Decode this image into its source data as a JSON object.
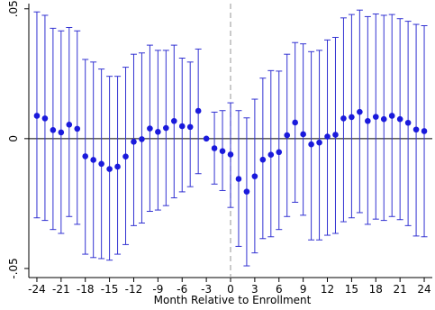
{
  "chart_data": {
    "type": "scatter",
    "title": "",
    "xlabel": "Month Relative to Enrollment",
    "ylabel": "",
    "xlim": [
      -25,
      25
    ],
    "ylim": [
      -0.0535,
      0.052
    ],
    "xticks": [
      -24,
      -21,
      -18,
      -15,
      -12,
      -9,
      -6,
      -3,
      0,
      3,
      6,
      9,
      12,
      15,
      18,
      21,
      24
    ],
    "xtick_labels": [
      "-24",
      "-21",
      "-18",
      "-15",
      "-12",
      "-9",
      "-6",
      "-3",
      "0",
      "3",
      "6",
      "9",
      "12",
      "15",
      "18",
      "21",
      "24"
    ],
    "yticks": [
      -0.05,
      0,
      0.05
    ],
    "ytick_labels": [
      "-.05",
      "0",
      ".05"
    ],
    "reference_lines": {
      "horizontal": 0,
      "vertical": 0
    },
    "grid": false,
    "legend": "none",
    "colors": {
      "points": "#1a1adc",
      "intervals": "#3232d2",
      "zero_line": "#000000",
      "vertical_line": "#a8a8a8"
    },
    "series": [
      {
        "x": [
          -24,
          -23,
          -22,
          -21,
          -20,
          -19,
          -18,
          -17,
          -16,
          -15,
          -14,
          -13,
          -12,
          -11,
          -10,
          -9,
          -8,
          -7,
          -6,
          -5,
          -4,
          -3,
          -2,
          -1,
          0,
          1,
          2,
          3,
          4,
          5,
          6,
          7,
          8,
          9,
          10,
          11,
          12,
          13,
          14,
          15,
          16,
          17,
          18,
          19,
          20,
          21,
          22,
          23,
          24
        ],
        "y": [
          0.0088,
          0.0078,
          0.0033,
          0.0024,
          0.0054,
          0.0038,
          -0.0068,
          -0.0082,
          -0.0097,
          -0.0117,
          -0.0108,
          -0.0069,
          -0.0012,
          -0.0002,
          0.0039,
          0.0026,
          0.0041,
          0.0068,
          0.0048,
          0.0045,
          0.0107,
          0.0,
          -0.0037,
          -0.0048,
          -0.0061,
          -0.0155,
          -0.0204,
          -0.0145,
          -0.0081,
          -0.0062,
          -0.0052,
          0.0013,
          0.0062,
          0.0017,
          -0.0022,
          -0.0015,
          0.0008,
          0.0015,
          0.0078,
          0.0083,
          0.0103,
          0.0068,
          0.0084,
          0.0075,
          0.0088,
          0.0075,
          0.0061,
          0.0035,
          0.0029
        ],
        "ci_low": [
          -0.0305,
          -0.0315,
          -0.035,
          -0.0365,
          -0.03,
          -0.033,
          -0.0445,
          -0.0458,
          -0.0462,
          -0.0468,
          -0.0445,
          -0.0408,
          -0.0335,
          -0.0325,
          -0.028,
          -0.0275,
          -0.0258,
          -0.0228,
          -0.0205,
          -0.0185,
          -0.0135,
          null,
          -0.0175,
          -0.02,
          -0.0265,
          -0.0415,
          -0.049,
          -0.044,
          -0.0385,
          -0.0378,
          -0.035,
          -0.03,
          -0.0245,
          -0.0295,
          -0.039,
          -0.039,
          -0.0372,
          -0.0365,
          -0.032,
          -0.0305,
          -0.0285,
          -0.033,
          -0.031,
          -0.0315,
          -0.03,
          -0.0312,
          -0.0335,
          -0.0375,
          -0.0378
        ],
        "ci_high": [
          0.0488,
          0.0475,
          0.0425,
          0.0415,
          0.0428,
          0.0415,
          0.0305,
          0.0295,
          0.0268,
          0.024,
          0.024,
          0.0275,
          0.0325,
          0.033,
          0.036,
          0.034,
          0.034,
          0.036,
          0.031,
          0.0295,
          0.0345,
          null,
          0.0102,
          0.0108,
          0.0138,
          0.0108,
          0.008,
          0.0152,
          0.0233,
          0.0262,
          0.026,
          0.0325,
          0.037,
          0.0365,
          0.0335,
          0.034,
          0.038,
          0.039,
          0.0465,
          0.0478,
          0.0495,
          0.047,
          0.048,
          0.0475,
          0.0478,
          0.0462,
          0.0452,
          0.044,
          0.0435
        ]
      }
    ]
  }
}
